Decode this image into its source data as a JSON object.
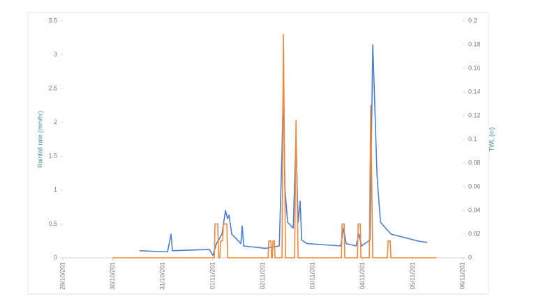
{
  "chart_data": {
    "type": "line",
    "y_label": "Rainfall rate (mm/hr)",
    "y2_label": "TWL (m)",
    "xlim": [
      0,
      8
    ],
    "xticks": [
      {
        "value": 0,
        "label": "29/10/201"
      },
      {
        "value": 1,
        "label": "30/10/201"
      },
      {
        "value": 2,
        "label": "31/10/201"
      },
      {
        "value": 3,
        "label": "01/11/201"
      },
      {
        "value": 4,
        "label": "02/11/201"
      },
      {
        "value": 5,
        "label": "03/11/201"
      },
      {
        "value": 6,
        "label": "04/11/201"
      },
      {
        "value": 7,
        "label": "05/11/201"
      },
      {
        "value": 8,
        "label": "06/11/201"
      }
    ],
    "ylim": [
      0,
      3.5
    ],
    "yticks": [
      0,
      0.5,
      1,
      1.5,
      2,
      2.5,
      3,
      3.5
    ],
    "y2lim": [
      0,
      0.2
    ],
    "y2ticks": [
      0,
      0.02,
      0.04,
      0.06,
      0.08,
      0.1,
      0.12,
      0.14,
      0.16,
      0.18,
      0.2
    ],
    "series": [
      {
        "name": "TWL",
        "color": "#4a7fd4",
        "axis": "y2",
        "x": [
          1.536,
          2.095,
          2.165,
          2.193,
          2.933,
          3.003,
          3.073,
          3.184,
          3.254,
          3.296,
          3.324,
          3.38,
          3.561,
          3.589,
          3.617,
          4.05,
          4.33,
          4.385,
          4.413,
          4.441,
          4.497,
          4.609,
          4.665,
          4.707,
          4.749,
          4.777,
          4.888,
          5.559,
          5.615,
          5.67,
          5.866,
          5.922,
          5.978,
          6.145,
          6.201,
          6.229,
          6.285,
          6.355,
          6.564,
          7.123,
          7.291
        ],
        "values": [
          0.006,
          0.005,
          0.02,
          0.006,
          0.007,
          0.002,
          0.012,
          0.02,
          0.04,
          0.033,
          0.036,
          0.02,
          0.012,
          0.027,
          0.01,
          0.008,
          0.01,
          0.09,
          0.15,
          0.06,
          0.03,
          0.025,
          0.1,
          0.03,
          0.048,
          0.015,
          0.012,
          0.01,
          0.025,
          0.012,
          0.01,
          0.02,
          0.01,
          0.015,
          0.18,
          0.145,
          0.07,
          0.03,
          0.02,
          0.014,
          0.013
        ]
      },
      {
        "name": "Rainfall rate",
        "color": "#f0883e",
        "x": [
          1.0,
          3.031,
          3.045,
          3.101,
          3.115,
          3.142,
          3.156,
          3.198,
          3.212,
          3.282,
          3.296,
          4.106,
          4.12,
          4.162,
          4.176,
          4.19,
          4.204,
          4.232,
          4.246,
          4.385,
          4.413,
          4.455,
          4.637,
          4.665,
          4.707,
          5.573,
          5.587,
          5.628,
          5.642,
          5.894,
          5.908,
          5.95,
          5.964,
          6.131,
          6.159,
          6.201,
          6.494,
          6.508,
          6.55,
          6.564,
          7.472
        ],
        "values": [
          0,
          0,
          0.5,
          0.5,
          0,
          0,
          0.25,
          0.25,
          0.5,
          0.5,
          0,
          0,
          0.25,
          0.25,
          0,
          0,
          0.25,
          0.25,
          0,
          0,
          3.3,
          0,
          0,
          2.03,
          0,
          0,
          0.5,
          0.5,
          0,
          0,
          0.5,
          0.5,
          0,
          0,
          2.25,
          0,
          0,
          0.25,
          0.25,
          0,
          0
        ]
      }
    ]
  }
}
